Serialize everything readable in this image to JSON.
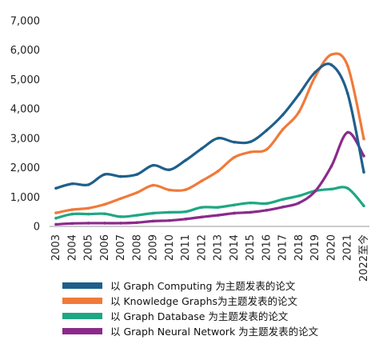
{
  "chart_data": {
    "type": "line",
    "categories": [
      "2003",
      "2004",
      "2005",
      "2006",
      "2007",
      "2008",
      "2009",
      "2010",
      "2011",
      "2012",
      "2013",
      "2014",
      "2015",
      "2016",
      "2017",
      "2018",
      "2019",
      "2020",
      "2021",
      "2022至今"
    ],
    "ylim": [
      0,
      7000
    ],
    "yticks": [
      "0",
      "1,000",
      "2,000",
      "3,000",
      "4,000",
      "5,000",
      "6,000",
      "7,000"
    ],
    "ytick_values": [
      0,
      1000,
      2000,
      3000,
      4000,
      5000,
      6000,
      7000
    ],
    "grid": false,
    "legend_position": "bottom",
    "series": [
      {
        "name": "以 Graph Computing 为主题发表的论文",
        "color": "#1f5f8b",
        "values": [
          1300,
          1450,
          1420,
          1770,
          1700,
          1770,
          2080,
          1930,
          2250,
          2650,
          3000,
          2870,
          2880,
          3270,
          3800,
          4500,
          5250,
          5500,
          4530,
          1850
        ]
      },
      {
        "name": "以 Knowledge Graphs为主题发表的论文",
        "color": "#f07a3a",
        "values": [
          460,
          570,
          620,
          750,
          950,
          1150,
          1400,
          1240,
          1250,
          1550,
          1880,
          2350,
          2530,
          2620,
          3300,
          3900,
          5100,
          5850,
          5470,
          2980
        ]
      },
      {
        "name": "以 Graph Database 为主题发表的论文",
        "color": "#1fa784",
        "values": [
          280,
          420,
          420,
          430,
          330,
          380,
          450,
          480,
          500,
          650,
          650,
          730,
          800,
          780,
          920,
          1040,
          1210,
          1270,
          1300,
          700
        ]
      },
      {
        "name": "以 Graph Neural Network 为主题发表的论文",
        "color": "#8b2a8b",
        "values": [
          70,
          100,
          110,
          110,
          110,
          130,
          180,
          200,
          250,
          320,
          380,
          450,
          480,
          550,
          660,
          800,
          1200,
          2050,
          3200,
          2400
        ]
      }
    ]
  }
}
